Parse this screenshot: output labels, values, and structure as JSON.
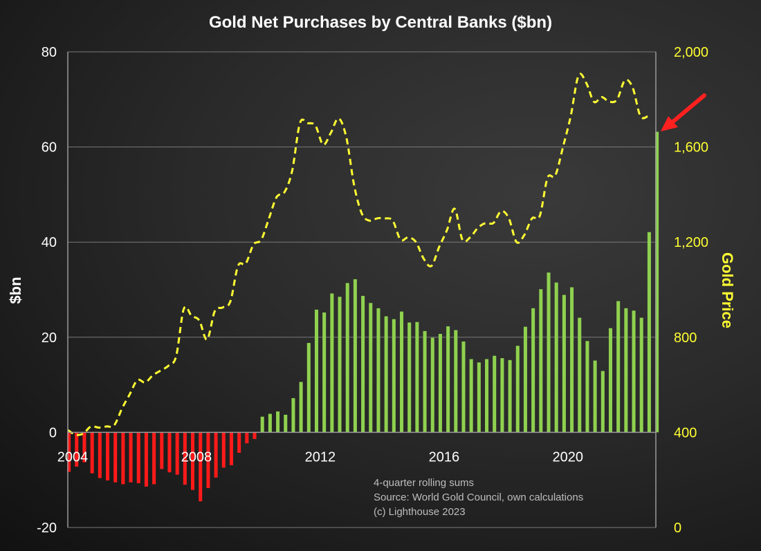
{
  "chart_data": {
    "type": "bar",
    "title": "Gold Net Purchases by Central Banks ($bn)",
    "ylabel": "$bn",
    "ylabel_right": "Gold Price",
    "ylim": [
      -20,
      80
    ],
    "ylim_right": [
      0,
      2000
    ],
    "yticks": [
      {
        "value": -20,
        "label": "-20"
      },
      {
        "value": 0,
        "label": "0"
      },
      {
        "value": 20,
        "label": "20"
      },
      {
        "value": 40,
        "label": "40"
      },
      {
        "value": 60,
        "label": "60"
      },
      {
        "value": 80,
        "label": "80"
      }
    ],
    "yticks_right": [
      {
        "value": 0,
        "label": "0"
      },
      {
        "value": 400,
        "label": "400"
      },
      {
        "value": 800,
        "label": "800"
      },
      {
        "value": 1200,
        "label": "1,200"
      },
      {
        "value": 1600,
        "label": "1,600"
      },
      {
        "value": 2000,
        "label": "2,000"
      }
    ],
    "xlim": [
      2004.0,
      2023.0
    ],
    "xticks": [
      {
        "value": 2004,
        "label": "2004"
      },
      {
        "value": 2008,
        "label": "2008"
      },
      {
        "value": 2012,
        "label": "2012"
      },
      {
        "value": 2016,
        "label": "2016"
      },
      {
        "value": 2020,
        "label": "2020"
      }
    ],
    "grid": true,
    "bar_series": {
      "name": "",
      "start": 2004.0,
      "step": 0.25,
      "positive_color": "#8fd14f",
      "negative_color": "#ff1a1a",
      "values": [
        -8.3,
        -7.2,
        -6.3,
        -8.6,
        -9.6,
        -10.1,
        -10.5,
        -10.9,
        -10.5,
        -10.7,
        -11.4,
        -10.9,
        -7.7,
        -8.4,
        -8.9,
        -11.0,
        -12.1,
        -14.5,
        -11.7,
        -9.5,
        -7.4,
        -6.9,
        -4.3,
        -2.3,
        -1.4,
        3.3,
        3.9,
        4.4,
        3.7,
        7.2,
        10.6,
        18.8,
        25.8,
        25.2,
        29.2,
        28.5,
        31.4,
        32.2,
        28.7,
        27.2,
        26.1,
        24.4,
        23.8,
        25.4,
        23.1,
        23.2,
        21.3,
        19.9,
        20.7,
        22.3,
        21.5,
        19.1,
        15.4,
        14.7,
        15.4,
        16.1,
        15.6,
        15.2,
        18.2,
        22.2,
        26.1,
        30.1,
        33.6,
        31.5,
        28.9,
        30.5,
        24.1,
        19.2,
        15.1,
        12.9,
        21.9,
        27.6,
        26.1,
        25.6,
        24.1,
        42.1,
        63.2
      ]
    },
    "line_series": {
      "name": "",
      "axis": "right",
      "color": "#ffff33",
      "style": "dashed",
      "x": [
        2004.0,
        2004.25,
        2004.5,
        2004.75,
        2005.0,
        2005.25,
        2005.5,
        2005.75,
        2006.0,
        2006.25,
        2006.5,
        2006.75,
        2007.0,
        2007.25,
        2007.5,
        2007.75,
        2008.0,
        2008.25,
        2008.5,
        2008.75,
        2009.0,
        2009.25,
        2009.5,
        2009.75,
        2010.0,
        2010.25,
        2010.5,
        2010.75,
        2011.0,
        2011.25,
        2011.5,
        2011.75,
        2012.0,
        2012.25,
        2012.5,
        2012.75,
        2013.0,
        2013.25,
        2013.5,
        2013.75,
        2014.0,
        2014.25,
        2014.5,
        2014.75,
        2015.0,
        2015.25,
        2015.5,
        2015.75,
        2016.0,
        2016.25,
        2016.5,
        2016.75,
        2017.0,
        2017.25,
        2017.5,
        2017.75,
        2018.0,
        2018.25,
        2018.5,
        2018.75,
        2019.0,
        2019.25,
        2019.5,
        2019.75,
        2020.0,
        2020.25,
        2020.5,
        2020.75,
        2021.0,
        2021.25,
        2021.5,
        2021.75,
        2022.0,
        2022.25,
        2022.5,
        2022.75
      ],
      "y": [
        410,
        390,
        395,
        425,
        420,
        425,
        430,
        500,
        560,
        620,
        610,
        640,
        660,
        680,
        720,
        920,
        890,
        870,
        790,
        910,
        925,
        950,
        1100,
        1110,
        1190,
        1210,
        1300,
        1390,
        1410,
        1500,
        1700,
        1700,
        1690,
        1610,
        1660,
        1720,
        1640,
        1440,
        1320,
        1290,
        1300,
        1300,
        1290,
        1210,
        1220,
        1200,
        1130,
        1100,
        1180,
        1250,
        1340,
        1210,
        1220,
        1260,
        1280,
        1280,
        1330,
        1300,
        1200,
        1230,
        1300,
        1310,
        1470,
        1480,
        1600,
        1730,
        1900,
        1870,
        1790,
        1810,
        1790,
        1800,
        1880,
        1850,
        1730,
        1730
      ]
    },
    "annotations": [
      "4-quarter rolling sums",
      "Source: World Gold Council, own calculations",
      "(c) Lighthouse 2023"
    ]
  }
}
